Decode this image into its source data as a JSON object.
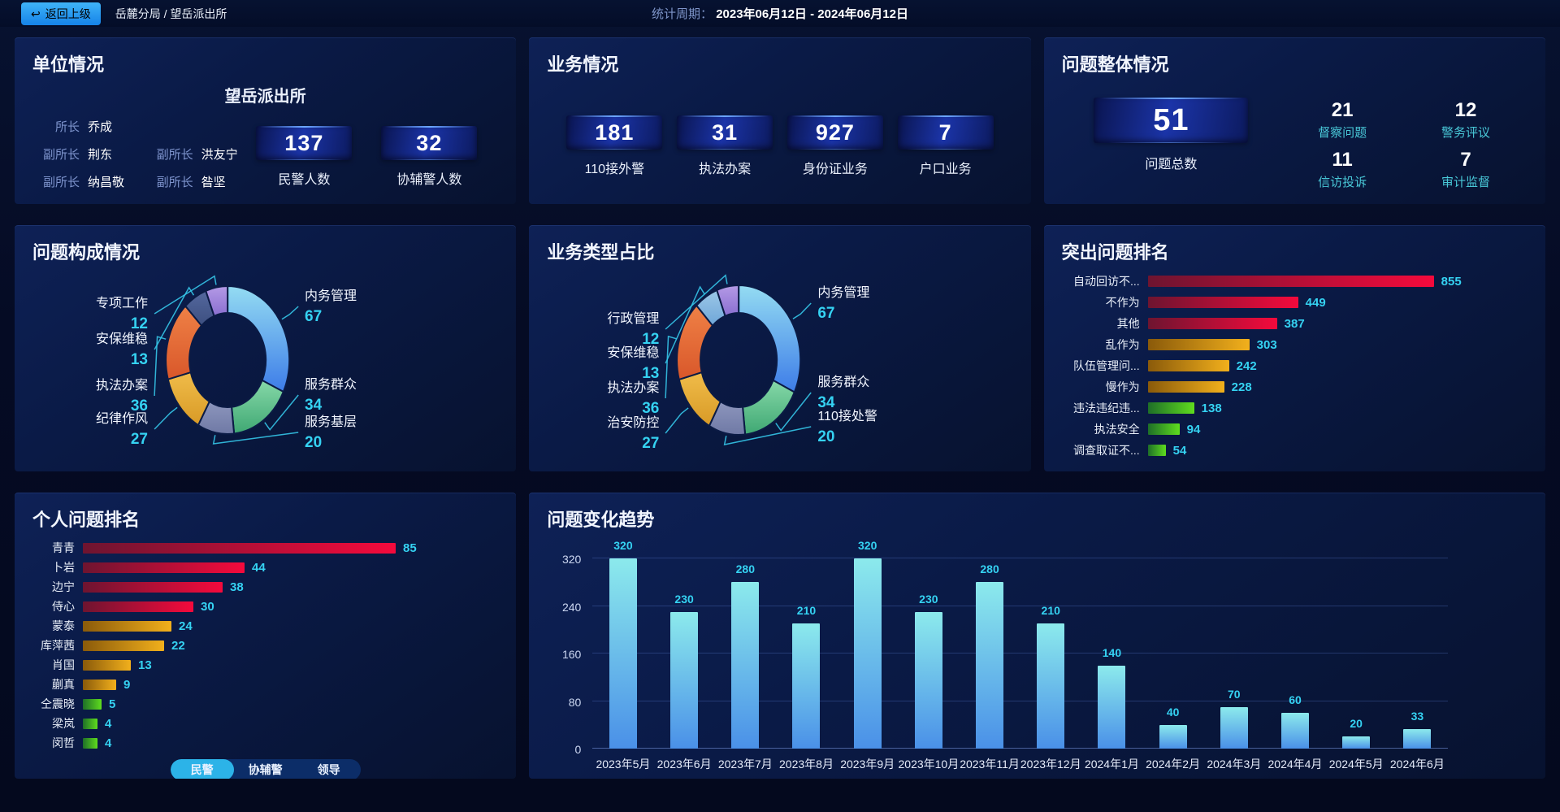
{
  "topbar": {
    "back_button": "返回上级",
    "breadcrumb": "岳麓分局 / 望岳派出所",
    "period_label": "统计周期：",
    "period_value": "2023年06月12日 - 2024年06月12日"
  },
  "unit_panel": {
    "title": "单位情况",
    "station_name": "望岳派出所",
    "leaders": [
      {
        "role": "所长",
        "name": "乔成"
      },
      {
        "role": "副所长",
        "name": "荆东"
      },
      {
        "role": "副所长",
        "name": "洪友宁"
      },
      {
        "role": "副所长",
        "name": "纳昌敬"
      },
      {
        "role": "副所长",
        "name": "昝坚"
      }
    ],
    "stats": [
      {
        "value": "137",
        "label": "民警人数"
      },
      {
        "value": "32",
        "label": "协辅警人数"
      }
    ]
  },
  "business_panel": {
    "title": "业务情况",
    "stats": [
      {
        "value": "181",
        "label": "110接外警"
      },
      {
        "value": "31",
        "label": "执法办案"
      },
      {
        "value": "927",
        "label": "身份证业务"
      },
      {
        "value": "7",
        "label": "户口业务"
      }
    ]
  },
  "problem_panel": {
    "title": "问题整体情况",
    "total": {
      "value": "51",
      "label": "问题总数"
    },
    "stats": [
      {
        "value": "21",
        "label": "督察问题"
      },
      {
        "value": "12",
        "label": "警务评议"
      },
      {
        "value": "11",
        "label": "信访投诉"
      },
      {
        "value": "7",
        "label": "审计监督"
      }
    ]
  },
  "colors": {
    "accent_cyan": "#35d2f2",
    "teal_label": "#49c8d8",
    "active_tab": "#2cb3e8",
    "bar_palette": {
      "red": [
        "#6e1430",
        "#f50a3c"
      ],
      "amber": [
        "#8a5a0a",
        "#f2b01c"
      ],
      "green": [
        "#1e6e28",
        "#5fdd1e"
      ]
    }
  },
  "chart_data": [
    {
      "id": "problem-composition",
      "type": "pie",
      "title": "问题构成情况",
      "donut": true,
      "legend_position": "callout-labels",
      "series": [
        {
          "name": "内务管理",
          "value": 67,
          "color": [
            "#94dcf2",
            "#3d7ce8"
          ]
        },
        {
          "name": "服务群众",
          "value": 34,
          "color": [
            "#86d8a8",
            "#3fa873"
          ]
        },
        {
          "name": "服务基层",
          "value": 20,
          "color": [
            "#8d96bd",
            "#6f79a5"
          ]
        },
        {
          "name": "纪律作风",
          "value": 27,
          "color": [
            "#f0bc4a",
            "#d89a26"
          ]
        },
        {
          "name": "执法办案",
          "value": 36,
          "color": [
            "#ef8146",
            "#d9572a"
          ]
        },
        {
          "name": "安保维稳",
          "value": 13,
          "color": [
            "#54689e",
            "#3d4f80"
          ]
        },
        {
          "name": "专项工作",
          "value": 12,
          "color": [
            "#b49ae6",
            "#8a6fd0"
          ]
        }
      ]
    },
    {
      "id": "business-type",
      "type": "pie",
      "title": "业务类型占比",
      "donut": true,
      "legend_position": "callout-labels",
      "series": [
        {
          "name": "内务管理",
          "value": 67,
          "color": [
            "#94dcf2",
            "#3d7ce8"
          ]
        },
        {
          "name": "服务群众",
          "value": 34,
          "color": [
            "#86d8a8",
            "#3fa873"
          ]
        },
        {
          "name": "110接处警",
          "value": 20,
          "color": [
            "#8d96bd",
            "#6f79a5"
          ]
        },
        {
          "name": "治安防控",
          "value": 27,
          "color": [
            "#f0bc4a",
            "#d89a26"
          ]
        },
        {
          "name": "执法办案",
          "value": 36,
          "color": [
            "#ef8146",
            "#d9572a"
          ]
        },
        {
          "name": "安保维稳",
          "value": 13,
          "color": [
            "#9cc8e8",
            "#6fa6d8"
          ]
        },
        {
          "name": "行政管理",
          "value": 12,
          "color": [
            "#b49ae6",
            "#8a6fd0"
          ]
        }
      ]
    },
    {
      "id": "prominent-problems",
      "type": "bar",
      "orientation": "horizontal",
      "title": "突出问题排名",
      "categories": [
        "自动回访不...",
        "不作为",
        "其他",
        "乱作为",
        "队伍管理问...",
        "慢作为",
        "违法违纪违...",
        "执法安全",
        "调查取证不..."
      ],
      "values": [
        855,
        449,
        387,
        303,
        242,
        228,
        138,
        94,
        54
      ],
      "color_groups": [
        "red",
        "red",
        "red",
        "amber",
        "amber",
        "amber",
        "green",
        "green",
        "green"
      ]
    },
    {
      "id": "personal-ranking",
      "type": "bar",
      "orientation": "horizontal",
      "title": "个人问题排名",
      "categories": [
        "青青",
        "卜岩",
        "边宁",
        "侍心",
        "蒙泰",
        "库萍茜",
        "肖国",
        "蒯真",
        "仝震晓",
        "梁岚",
        "闵哲"
      ],
      "values": [
        85,
        44,
        38,
        30,
        24,
        22,
        13,
        9,
        5,
        4,
        4
      ],
      "color_groups": [
        "red",
        "red",
        "red",
        "red",
        "amber",
        "amber",
        "amber",
        "amber",
        "green",
        "green",
        "green"
      ],
      "tabs": [
        "民警",
        "协辅警",
        "领导"
      ],
      "active_tab": "民警"
    },
    {
      "id": "problem-trend",
      "type": "bar",
      "orientation": "vertical",
      "title": "问题变化趋势",
      "categories": [
        "2023年5月",
        "2023年6月",
        "2023年7月",
        "2023年8月",
        "2023年9月",
        "2023年10月",
        "2023年11月",
        "2023年12月",
        "2024年1月",
        "2024年2月",
        "2024年3月",
        "2024年4月",
        "2024年5月",
        "2024年6月"
      ],
      "values": [
        320,
        230,
        280,
        210,
        320,
        230,
        280,
        210,
        140,
        40,
        70,
        60,
        20,
        33
      ],
      "y_ticks": [
        0,
        80,
        160,
        240,
        320
      ],
      "ylim": [
        0,
        320
      ],
      "grid": true,
      "bar_color": [
        "#8ceaec",
        "#4a90e8"
      ]
    }
  ]
}
